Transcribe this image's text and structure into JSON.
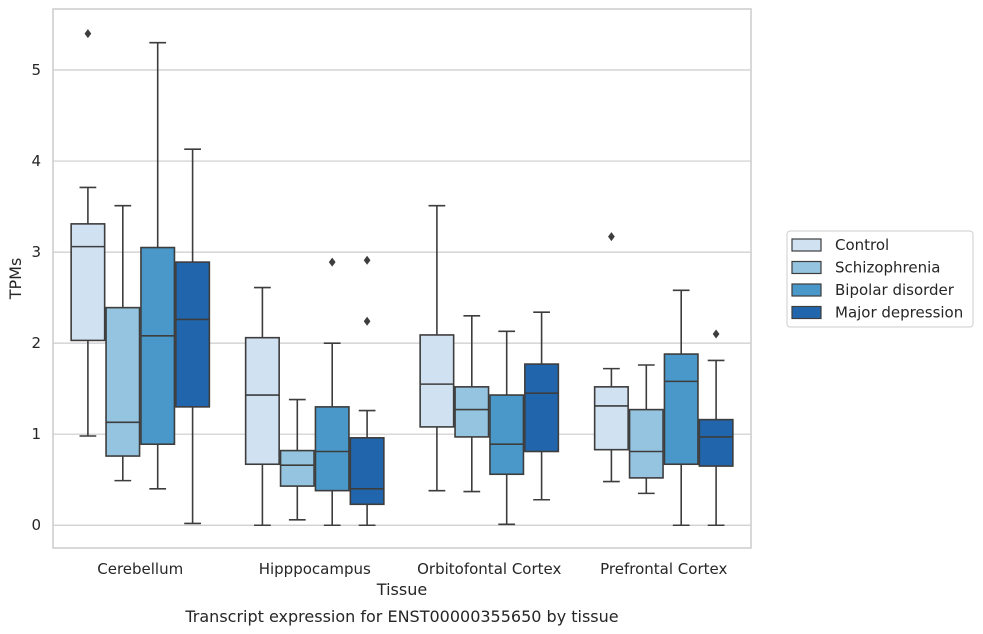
{
  "chart_data": {
    "type": "box",
    "title": "",
    "caption": "Transcript expression for ENST00000355650 by tissue",
    "xlabel": "Tissue",
    "ylabel": "TPMs",
    "ylim": [
      -0.25,
      5.67
    ],
    "yticks": [
      0,
      1,
      2,
      3,
      4,
      5
    ],
    "grid": "horizontal",
    "legend_position": "right",
    "categories": [
      "Cerebellum",
      "Hipppocampus",
      "Orbitofontal Cortex",
      "Prefrontal Cortex"
    ],
    "series": [
      {
        "name": "Control",
        "color": "#d0e1f2",
        "boxes": [
          {
            "whislo": 0.98,
            "q1": 2.03,
            "med": 3.06,
            "q3": 3.31,
            "whishi": 3.71,
            "fliers": [
              5.4
            ]
          },
          {
            "whislo": 0.0,
            "q1": 0.67,
            "med": 1.43,
            "q3": 2.06,
            "whishi": 2.61,
            "fliers": []
          },
          {
            "whislo": 0.38,
            "q1": 1.08,
            "med": 1.55,
            "q3": 2.09,
            "whishi": 3.51,
            "fliers": []
          },
          {
            "whislo": 0.48,
            "q1": 0.83,
            "med": 1.31,
            "q3": 1.52,
            "whishi": 1.72,
            "fliers": [
              3.17
            ]
          }
        ]
      },
      {
        "name": "Schizophrenia",
        "color": "#94c4df",
        "boxes": [
          {
            "whislo": 0.49,
            "q1": 0.76,
            "med": 1.13,
            "q3": 2.39,
            "whishi": 3.51,
            "fliers": []
          },
          {
            "whislo": 0.06,
            "q1": 0.43,
            "med": 0.66,
            "q3": 0.82,
            "whishi": 1.38,
            "fliers": []
          },
          {
            "whislo": 0.37,
            "q1": 0.97,
            "med": 1.27,
            "q3": 1.52,
            "whishi": 2.3,
            "fliers": []
          },
          {
            "whislo": 0.35,
            "q1": 0.52,
            "med": 0.81,
            "q3": 1.27,
            "whishi": 1.76,
            "fliers": []
          }
        ]
      },
      {
        "name": "Bipolar disorder",
        "color": "#4a98c9",
        "boxes": [
          {
            "whislo": 0.4,
            "q1": 0.89,
            "med": 2.08,
            "q3": 3.05,
            "whishi": 5.3,
            "fliers": []
          },
          {
            "whislo": 0.0,
            "q1": 0.38,
            "med": 0.81,
            "q3": 1.3,
            "whishi": 2.0,
            "fliers": [
              2.89
            ]
          },
          {
            "whislo": 0.01,
            "q1": 0.56,
            "med": 0.89,
            "q3": 1.43,
            "whishi": 2.13,
            "fliers": []
          },
          {
            "whislo": 0.0,
            "q1": 0.67,
            "med": 1.58,
            "q3": 1.88,
            "whishi": 2.58,
            "fliers": []
          }
        ]
      },
      {
        "name": "Major depression",
        "color": "#2166ac",
        "boxes": [
          {
            "whislo": 0.02,
            "q1": 1.3,
            "med": 2.26,
            "q3": 2.89,
            "whishi": 4.13,
            "fliers": []
          },
          {
            "whislo": 0.0,
            "q1": 0.23,
            "med": 0.4,
            "q3": 0.96,
            "whishi": 1.26,
            "fliers": [
              2.24,
              2.91
            ]
          },
          {
            "whislo": 0.28,
            "q1": 0.81,
            "med": 1.45,
            "q3": 1.77,
            "whishi": 2.34,
            "fliers": []
          },
          {
            "whislo": 0.0,
            "q1": 0.65,
            "med": 0.97,
            "q3": 1.16,
            "whishi": 1.81,
            "fliers": [
              2.1
            ]
          }
        ]
      }
    ]
  },
  "colors": {
    "grid": "#cccccc",
    "frame": "#cccccc",
    "box_edge": "#3d3d3d",
    "text": "#262626"
  }
}
